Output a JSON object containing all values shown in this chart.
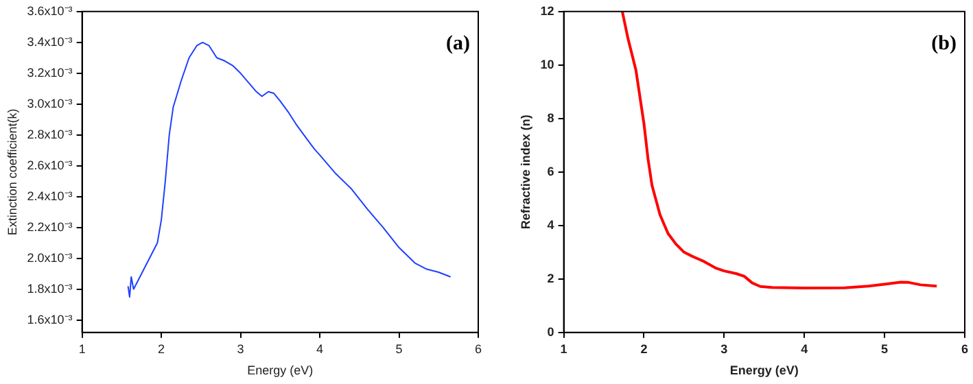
{
  "chart_data": [
    {
      "type": "line",
      "xlabel": "Energy (eV)",
      "ylabel": "Extinction coefficient(k)",
      "annotations": [
        "(a)"
      ],
      "x": [
        1.58,
        1.6,
        1.62,
        1.65,
        1.7,
        1.75,
        1.85,
        1.95,
        2.0,
        2.05,
        2.1,
        2.15,
        2.25,
        2.35,
        2.45,
        2.52,
        2.6,
        2.7,
        2.8,
        2.9,
        3.0,
        3.1,
        3.2,
        3.27,
        3.35,
        3.42,
        3.5,
        3.6,
        3.7,
        3.8,
        3.93,
        4.0,
        4.2,
        4.4,
        4.6,
        4.7,
        4.8,
        5.0,
        5.2,
        5.35,
        5.5,
        5.65
      ],
      "series": [
        {
          "color": "#1f3fff",
          "values": [
            0.00182,
            0.00175,
            0.00188,
            0.0018,
            0.00185,
            0.0019,
            0.002,
            0.0021,
            0.00225,
            0.0025,
            0.0028,
            0.00298,
            0.00315,
            0.0033,
            0.00338,
            0.0034,
            0.00338,
            0.0033,
            0.00328,
            0.00325,
            0.0032,
            0.00314,
            0.00308,
            0.00305,
            0.00308,
            0.00307,
            0.00302,
            0.00295,
            0.00287,
            0.0028,
            0.00271,
            0.00267,
            0.00255,
            0.00245,
            0.00232,
            0.00226,
            0.0022,
            0.00207,
            0.00197,
            0.00193,
            0.00191,
            0.00188
          ]
        }
      ],
      "xlim": [
        1,
        6
      ],
      "xticks": [
        1,
        2,
        3,
        4,
        5,
        6
      ],
      "ylim": [
        0.00152,
        0.0036
      ],
      "yticks": [
        {
          "value": 0.0016,
          "label": "1.6x10⁻³"
        },
        {
          "value": 0.0018,
          "label": "1.8x10⁻³"
        },
        {
          "value": 0.002,
          "label": "2.0x10⁻³"
        },
        {
          "value": 0.0022,
          "label": "2.2x10⁻³"
        },
        {
          "value": 0.0024,
          "label": "2.4x10⁻³"
        },
        {
          "value": 0.0026,
          "label": "2.6x10⁻³"
        },
        {
          "value": 0.0028,
          "label": "2.8x10⁻³"
        },
        {
          "value": 0.003,
          "label": "3.0x10⁻³"
        },
        {
          "value": 0.0032,
          "label": "3.2x10⁻³"
        },
        {
          "value": 0.0034,
          "label": "3.4x10⁻³"
        },
        {
          "value": 0.0036,
          "label": "3.6x10⁻³"
        }
      ],
      "grid": false,
      "legend": false,
      "marker": "none",
      "line_style": "solid"
    },
    {
      "type": "line",
      "xlabel": "Energy (eV)",
      "ylabel": "Refractive index (n)",
      "annotations": [
        "(b)"
      ],
      "x": [
        1.73,
        1.8,
        1.9,
        2.0,
        2.05,
        2.1,
        2.2,
        2.3,
        2.4,
        2.5,
        2.6,
        2.75,
        2.9,
        3.0,
        3.15,
        3.25,
        3.35,
        3.45,
        3.6,
        4.0,
        4.5,
        4.8,
        5.0,
        5.2,
        5.3,
        5.45,
        5.65
      ],
      "series": [
        {
          "color": "#ff0000",
          "values": [
            12,
            11,
            9.8,
            7.8,
            6.5,
            5.5,
            4.4,
            3.7,
            3.3,
            3.0,
            2.85,
            2.65,
            2.4,
            2.3,
            2.2,
            2.1,
            1.85,
            1.72,
            1.68,
            1.66,
            1.67,
            1.73,
            1.8,
            1.88,
            1.87,
            1.78,
            1.73
          ]
        }
      ],
      "xlim": [
        1,
        6
      ],
      "xticks": [
        1,
        2,
        3,
        4,
        5,
        6
      ],
      "ylim": [
        0,
        12
      ],
      "yticks": [
        0,
        2,
        4,
        6,
        8,
        10,
        12
      ],
      "grid": false,
      "legend": false,
      "marker": "none",
      "line_style": "solid"
    }
  ]
}
